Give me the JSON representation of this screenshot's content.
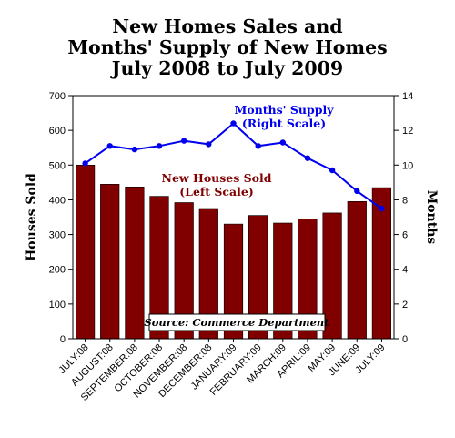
{
  "title_lines": [
    "New Homes Sales and",
    "Months' Supply of New Homes",
    "July 2008 to July 2009"
  ],
  "source_note": "Source: Commerce Department",
  "chart_data": {
    "type": "bar",
    "categories": [
      "JULY:08",
      "AUGUST:08",
      "SEPTEMBER:08",
      "OCTOBER:08",
      "NOVEMBER:08",
      "DECEMBER:08",
      "JANUARY:09",
      "FEBRUARY:09",
      "MARCH:09",
      "APRIL:09",
      "MAY:09",
      "JUNE:09",
      "JULY:09"
    ],
    "series": [
      {
        "name": "New Houses Sold",
        "annotation": [
          "New Houses Sold",
          "(Left Scale)"
        ],
        "axis": "left",
        "type": "bar",
        "color": "#800000",
        "values": [
          500,
          445,
          437,
          410,
          392,
          375,
          330,
          355,
          333,
          345,
          362,
          395,
          435
        ]
      },
      {
        "name": "Months' Supply",
        "annotation": [
          "Months' Supply",
          "(Right Scale)"
        ],
        "axis": "right",
        "type": "line",
        "color": "#0000ee",
        "values": [
          10.1,
          11.1,
          10.9,
          11.1,
          11.4,
          11.2,
          12.4,
          11.1,
          11.3,
          10.4,
          9.7,
          8.5,
          7.5
        ]
      }
    ],
    "ylabel": "Houses Sold",
    "y2label": "Months",
    "ylim": [
      0,
      700
    ],
    "y2lim": [
      0,
      14
    ],
    "yticks": [
      0,
      100,
      200,
      300,
      400,
      500,
      600,
      700
    ],
    "y2ticks": [
      0,
      2,
      4,
      6,
      8,
      10,
      12,
      14
    ],
    "grid": false
  }
}
